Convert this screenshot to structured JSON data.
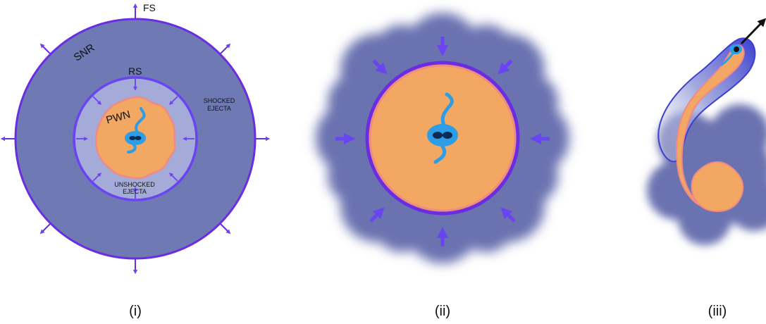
{
  "panels": [
    {
      "caption": "(i)",
      "labels": {
        "fs": "FS",
        "snr": "SNR",
        "rs": "RS",
        "pwn": "PWN",
        "shocked_line1": "SHOCKED",
        "shocked_line2": "EJECTA",
        "unshocked_line1": "UNSHOCKED",
        "unshocked_line2": "EJECTA"
      }
    },
    {
      "caption": "(ii)"
    },
    {
      "caption": "(iii)"
    }
  ],
  "colors": {
    "snr_fill": "#6f7ab5",
    "shock_line": "#6a2ee0",
    "arrow": "#6a44f0",
    "shocked_ejecta": "#a4abd9",
    "pwn_fill": "#f2a763",
    "pwn_edge": "#f08a84",
    "pulsar_blue": "#2e9de6",
    "pulsar_dark": "#0d2b55",
    "cloud": "#6b72b0"
  }
}
